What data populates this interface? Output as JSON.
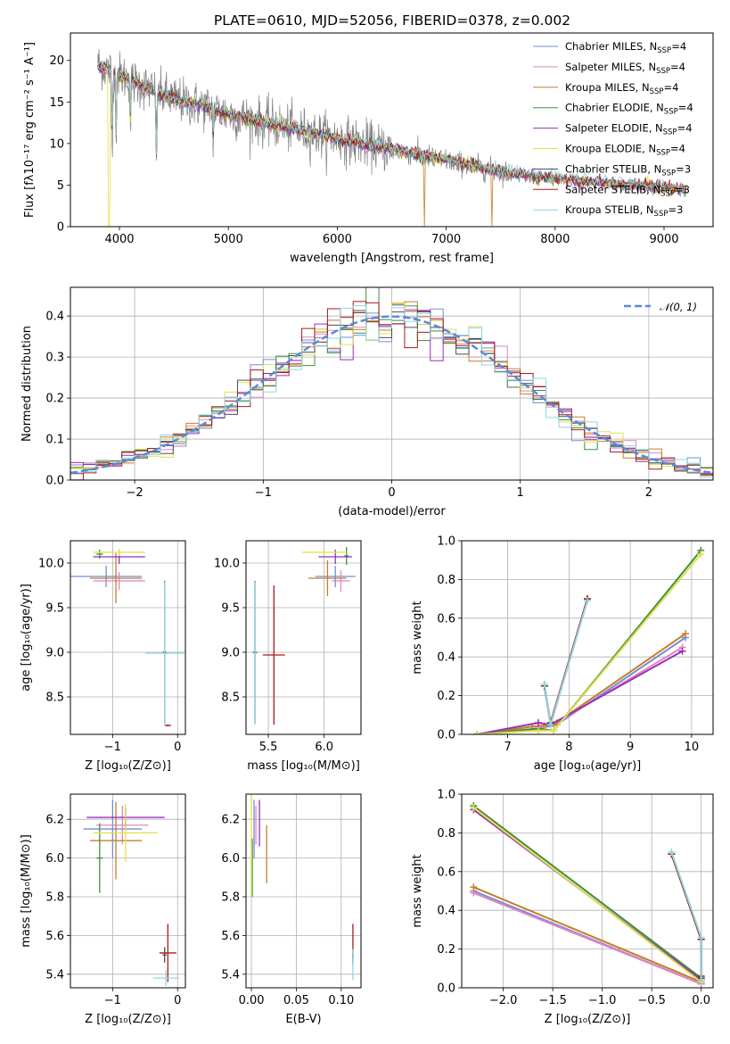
{
  "figure": {
    "title": "PLATE=0610, MJD=52056, FIBERID=0378, z=0.002"
  },
  "colors": {
    "chabrier_miles": "#6f8fd6",
    "salpeter_miles": "#e285c3",
    "kroupa_miles": "#c87d2a",
    "chabrier_elodie": "#3f8f3f",
    "salpeter_elodie": "#9a2fb8",
    "kroupa_elodie": "#e0e04a",
    "chabrier_stelib": "#4d4d4d",
    "salpeter_stelib": "#a81a1a",
    "kroupa_stelib": "#8fd6dd",
    "gaussian": "#5b8ad9",
    "spectrum": "#808080"
  },
  "chart_data": [
    {
      "id": "spectrum",
      "type": "line",
      "xlabel": "wavelength [Angstrom, rest frame]",
      "ylabel": "Flux [fλ10⁻¹⁷ erg cm⁻² s⁻¹ A⁻¹]",
      "xlim": [
        3550,
        9450
      ],
      "ylim": [
        0,
        23.3
      ],
      "xticks": [
        4000,
        5000,
        6000,
        7000,
        8000,
        9000
      ],
      "yticks": [
        0,
        5,
        10,
        15,
        20
      ],
      "grid": false,
      "legend": "top-right",
      "legend_entries": [
        {
          "model": "Chabrier MILES",
          "sub": "SSP",
          "n": "4",
          "color_key": "chabrier_miles"
        },
        {
          "model": "Salpeter MILES",
          "sub": "SSP",
          "n": "4",
          "color_key": "salpeter_miles"
        },
        {
          "model": "Kroupa MILES",
          "sub": "SSP",
          "n": "4",
          "color_key": "kroupa_miles"
        },
        {
          "model": "Chabrier ELODIE",
          "sub": "SSP",
          "n": "4",
          "color_key": "chabrier_elodie"
        },
        {
          "model": "Salpeter ELODIE",
          "sub": "SSP",
          "n": "4",
          "color_key": "salpeter_elodie"
        },
        {
          "model": "Kroupa ELODIE",
          "sub": "SSP",
          "n": "4",
          "color_key": "kroupa_elodie"
        },
        {
          "model": "Chabrier STELIB",
          "sub": "SSP",
          "n": "3",
          "color_key": "chabrier_stelib"
        },
        {
          "model": "Salpeter STELIB",
          "sub": "SSP",
          "n": "3",
          "color_key": "salpeter_stelib"
        },
        {
          "model": "Kroupa STELIB",
          "sub": "SSP",
          "n": "3",
          "color_key": "kroupa_stelib"
        }
      ],
      "continuum": {
        "x": [
          3800,
          4000,
          4200,
          4400,
          4600,
          4800,
          5000,
          5300,
          5600,
          6000,
          6500,
          7000,
          7500,
          8000,
          8500,
          9000,
          9200
        ],
        "y": [
          19.5,
          18.3,
          17.0,
          15.8,
          15.0,
          14.4,
          13.5,
          12.6,
          11.7,
          10.6,
          9.3,
          8.0,
          6.6,
          5.8,
          5.2,
          4.7,
          4.5
        ]
      },
      "absorption_features": [
        {
          "x": 3934,
          "depth": 10.5
        },
        {
          "x": 3969,
          "depth": 7.5
        },
        {
          "x": 4102,
          "depth": 5.0
        },
        {
          "x": 4340,
          "depth": 7.5
        },
        {
          "x": 4861,
          "depth": 3.5
        }
      ],
      "model_dropouts": [
        {
          "x": 3905,
          "series": "kroupa_elodie"
        },
        {
          "x": 6800,
          "series": "kroupa_miles"
        },
        {
          "x": 7420,
          "series": "kroupa_miles"
        }
      ]
    },
    {
      "id": "residuals",
      "type": "histogram",
      "xlabel": "(data-model)/error",
      "ylabel": "Normed distribution",
      "xlim": [
        -2.5,
        2.5
      ],
      "ylim": [
        0,
        0.47
      ],
      "xticks": [
        -2,
        -1,
        0,
        1,
        2
      ],
      "xtick_labels": [
        "−2",
        "−1",
        "0",
        "1",
        "2"
      ],
      "yticks": [
        0.0,
        0.1,
        0.2,
        0.3,
        0.4
      ],
      "grid": true,
      "legend": "top-right",
      "legend_label": "𝒩(0, 1)",
      "bin_width": 0.1,
      "series_keys": [
        "chabrier_miles",
        "salpeter_miles",
        "kroupa_miles",
        "chabrier_elodie",
        "salpeter_elodie",
        "kroupa_elodie",
        "chabrier_stelib",
        "salpeter_stelib",
        "kroupa_stelib"
      ]
    },
    {
      "id": "age_vs_z",
      "type": "errorbar",
      "xlabel": "Z [log₁₀(Z/Z⊙)]",
      "ylabel": "age  [log₁₀(age/yr)]",
      "xlim": [
        -1.65,
        0.12
      ],
      "ylim": [
        8.08,
        10.25
      ],
      "xticks": [
        -1,
        0
      ],
      "xtick_labels": [
        "−1",
        "0"
      ],
      "yticks": [
        8.5,
        9.0,
        9.5,
        10.0
      ],
      "grid": true,
      "points": [
        {
          "series": "chabrier_miles",
          "x": -1.1,
          "xerr": 0.55,
          "y": 9.85,
          "yerr": 0.12
        },
        {
          "series": "salpeter_miles",
          "x": -0.9,
          "xerr": 0.4,
          "y": 9.8,
          "yerr": 0.1
        },
        {
          "series": "kroupa_miles",
          "x": -0.95,
          "xerr": 0.4,
          "y": 9.83,
          "yerr": 0.28
        },
        {
          "series": "chabrier_elodie",
          "x": -1.2,
          "xerr": 0.05,
          "y": 10.1,
          "yerr": 0.05
        },
        {
          "series": "salpeter_elodie",
          "x": -0.9,
          "xerr": 0.4,
          "y": 10.07,
          "yerr": 0.08
        },
        {
          "series": "kroupa_elodie",
          "x": -0.9,
          "xerr": 0.4,
          "y": 10.12,
          "yerr": 0.04
        },
        {
          "series": "chabrier_stelib",
          "x": -0.2,
          "xerr": 0.03,
          "y": 9.0,
          "yerr": 0.8
        },
        {
          "series": "salpeter_stelib",
          "x": -0.15,
          "xerr": 0.05,
          "y": 8.18,
          "yerr": 0.01
        },
        {
          "series": "kroupa_stelib",
          "x": -0.2,
          "xerr": 0.3,
          "y": 8.99,
          "yerr": 0.8
        }
      ]
    },
    {
      "id": "age_vs_mass",
      "type": "errorbar",
      "xlabel": "mass [log₁₀(M/M⊙)]",
      "ylabel": "",
      "xlim": [
        5.3,
        6.33
      ],
      "ylim": [
        8.08,
        10.25
      ],
      "xticks": [
        5.5,
        6.0
      ],
      "xtick_labels": [
        "5.5",
        "6.0"
      ],
      "yticks": [
        8.5,
        9.0,
        9.5,
        10.0
      ],
      "grid": true,
      "points": [
        {
          "series": "chabrier_miles",
          "x": 6.1,
          "xerr": 0.18,
          "y": 9.85,
          "yerr": 0.12
        },
        {
          "series": "salpeter_miles",
          "x": 6.15,
          "xerr": 0.08,
          "y": 9.8,
          "yerr": 0.12
        },
        {
          "series": "kroupa_miles",
          "x": 6.03,
          "xerr": 0.17,
          "y": 9.83,
          "yerr": 0.2
        },
        {
          "series": "chabrier_elodie",
          "x": 6.2,
          "xerr": 0.02,
          "y": 10.08,
          "yerr": 0.1
        },
        {
          "series": "salpeter_elodie",
          "x": 6.1,
          "xerr": 0.15,
          "y": 10.07,
          "yerr": 0.08
        },
        {
          "series": "kroupa_elodie",
          "x": 6.0,
          "xerr": 0.2,
          "y": 10.12,
          "yerr": 0.03
        },
        {
          "series": "chabrier_stelib",
          "x": 5.38,
          "xerr": 0.02,
          "y": 9.0,
          "yerr": 0.8
        },
        {
          "series": "salpeter_stelib",
          "x": 5.55,
          "xerr": 0.1,
          "y": 8.97,
          "yerr": 0.78
        },
        {
          "series": "kroupa_stelib",
          "x": 5.38,
          "xerr": 0.02,
          "y": 8.99,
          "yerr": 0.8
        }
      ]
    },
    {
      "id": "weight_vs_age",
      "type": "line",
      "xlabel": "age  [log₁₀(age/yr)]",
      "ylabel": "mass weight",
      "xlim": [
        6.25,
        10.35
      ],
      "ylim": [
        0,
        1.0
      ],
      "xticks": [
        7,
        8,
        9,
        10
      ],
      "yticks": [
        0.0,
        0.2,
        0.4,
        0.6,
        0.8,
        1.0
      ],
      "grid": true,
      "series": [
        {
          "color_key": "chabrier_miles",
          "x": [
            6.5,
            7.5,
            7.8,
            9.9
          ],
          "y": [
            0.0,
            0.03,
            0.05,
            0.5
          ]
        },
        {
          "color_key": "salpeter_miles",
          "x": [
            6.5,
            7.5,
            7.8,
            9.85
          ],
          "y": [
            0.0,
            0.03,
            0.06,
            0.45
          ]
        },
        {
          "color_key": "kroupa_miles",
          "x": [
            6.5,
            7.4,
            7.75,
            9.9
          ],
          "y": [
            0.0,
            0.04,
            0.05,
            0.52
          ]
        },
        {
          "color_key": "chabrier_elodie",
          "x": [
            6.5,
            7.5,
            7.75,
            10.15
          ],
          "y": [
            0.0,
            0.03,
            0.02,
            0.95
          ]
        },
        {
          "color_key": "salpeter_elodie",
          "x": [
            6.5,
            7.5,
            7.7,
            9.85
          ],
          "y": [
            0.0,
            0.06,
            0.05,
            0.43
          ]
        },
        {
          "color_key": "kroupa_elodie",
          "x": [
            6.5,
            7.5,
            7.75,
            10.15
          ],
          "y": [
            0.0,
            0.02,
            0.02,
            0.93
          ]
        },
        {
          "color_key": "chabrier_stelib",
          "x": [
            7.6,
            7.7,
            8.3
          ],
          "y": [
            0.25,
            0.05,
            0.7
          ]
        },
        {
          "color_key": "salpeter_stelib",
          "x": [
            7.6,
            7.7,
            8.3
          ],
          "y": [
            0.25,
            0.06,
            0.7
          ]
        },
        {
          "color_key": "kroupa_stelib",
          "x": [
            7.6,
            7.7,
            8.3
          ],
          "y": [
            0.26,
            0.05,
            0.69
          ]
        }
      ]
    },
    {
      "id": "mass_vs_z",
      "type": "errorbar",
      "xlabel": "Z [log₁₀(Z/Z⊙)]",
      "ylabel": "mass [log₁₀(M/M⊙)]",
      "xlim": [
        -1.65,
        0.12
      ],
      "ylim": [
        5.33,
        6.33
      ],
      "xticks": [
        -1,
        0
      ],
      "xtick_labels": [
        "−1",
        "0"
      ],
      "yticks": [
        5.4,
        5.6,
        5.8,
        6.0,
        6.2
      ],
      "grid": true,
      "points": [
        {
          "series": "chabrier_miles",
          "x": -1.0,
          "xerr": 0.45,
          "y": 6.15,
          "yerr": 0.15
        },
        {
          "series": "salpeter_miles",
          "x": -0.85,
          "xerr": 0.4,
          "y": 6.17,
          "yerr": 0.1
        },
        {
          "series": "kroupa_miles",
          "x": -0.95,
          "xerr": 0.4,
          "y": 6.09,
          "yerr": 0.2
        },
        {
          "series": "chabrier_elodie",
          "x": -1.2,
          "xerr": 0.05,
          "y": 6.0,
          "yerr": 0.18
        },
        {
          "series": "salpeter_elodie",
          "x": -0.8,
          "xerr": 0.6,
          "y": 6.21,
          "yerr": 0.05
        },
        {
          "series": "kroupa_elodie",
          "x": -0.8,
          "xerr": 0.5,
          "y": 6.13,
          "yerr": 0.15
        },
        {
          "series": "chabrier_stelib",
          "x": -0.2,
          "xerr": 0.03,
          "y": 5.5,
          "yerr": 0.04
        },
        {
          "series": "salpeter_stelib",
          "x": -0.15,
          "xerr": 0.13,
          "y": 5.51,
          "yerr": 0.15
        },
        {
          "series": "kroupa_stelib",
          "x": -0.18,
          "xerr": 0.2,
          "y": 5.38,
          "yerr": 0.04
        }
      ]
    },
    {
      "id": "mass_vs_ebv",
      "type": "errorbar",
      "xlabel": "E(B-V)",
      "ylabel": "",
      "xlim": [
        -0.006,
        0.122
      ],
      "ylim": [
        5.33,
        6.33
      ],
      "xticks": [
        0.0,
        0.05,
        0.1
      ],
      "xtick_labels": [
        "0.00",
        "0.05",
        "0.10"
      ],
      "yticks": [
        5.4,
        5.6,
        5.8,
        6.0,
        6.2
      ],
      "grid": true,
      "points": [
        {
          "series": "chabrier_miles",
          "x": 0.003,
          "y": 6.15,
          "yerr": 0.15
        },
        {
          "series": "salpeter_miles",
          "x": 0.005,
          "y": 6.17,
          "yerr": 0.1
        },
        {
          "series": "kroupa_miles",
          "x": 0.017,
          "y": 6.02,
          "yerr": 0.15
        },
        {
          "series": "chabrier_elodie",
          "x": 0.001,
          "y": 5.95,
          "yerr": 0.15
        },
        {
          "series": "salpeter_elodie",
          "x": 0.009,
          "y": 6.18,
          "yerr": 0.12
        },
        {
          "series": "kroupa_elodie",
          "x": 0.0,
          "y": 6.1,
          "yerr": 0.3
        },
        {
          "series": "chabrier_stelib",
          "x": 0.113,
          "y": 5.48,
          "yerr": 0.03
        },
        {
          "series": "salpeter_stelib",
          "x": 0.113,
          "y": 5.57,
          "yerr": 0.09
        },
        {
          "series": "kroupa_stelib",
          "x": 0.113,
          "y": 5.45,
          "yerr": 0.08
        }
      ]
    },
    {
      "id": "weight_vs_z",
      "type": "line",
      "xlabel": "Z [log₁₀(Z/Z⊙)]",
      "ylabel": "mass weight",
      "xlim": [
        -2.42,
        0.12
      ],
      "ylim": [
        0,
        1.0
      ],
      "xticks": [
        -2.0,
        -1.5,
        -1.0,
        -0.5,
        0.0
      ],
      "xtick_labels": [
        "−2.0",
        "−1.5",
        "−1.0",
        "−0.5",
        "0.0"
      ],
      "yticks": [
        0.0,
        0.2,
        0.4,
        0.6,
        0.8,
        1.0
      ],
      "grid": true,
      "series": [
        {
          "color_key": "chabrier_miles",
          "x": [
            -2.3,
            0.0
          ],
          "y": [
            0.5,
            0.02
          ]
        },
        {
          "color_key": "salpeter_miles",
          "x": [
            -2.3,
            0.0
          ],
          "y": [
            0.49,
            0.02
          ]
        },
        {
          "color_key": "kroupa_miles",
          "x": [
            -2.3,
            0.0
          ],
          "y": [
            0.52,
            0.03
          ]
        },
        {
          "color_key": "chabrier_elodie",
          "x": [
            -2.3,
            0.0
          ],
          "y": [
            0.94,
            0.05
          ]
        },
        {
          "color_key": "salpeter_elodie",
          "x": [
            -2.3,
            0.0
          ],
          "y": [
            0.92,
            0.04
          ]
        },
        {
          "color_key": "kroupa_elodie",
          "x": [
            -2.3,
            0.0
          ],
          "y": [
            0.93,
            0.03
          ]
        },
        {
          "color_key": "chabrier_stelib",
          "x": [
            -0.3,
            0.0,
            0.0
          ],
          "y": [
            0.69,
            0.25,
            0.05
          ]
        },
        {
          "color_key": "salpeter_stelib",
          "x": [
            -0.3,
            0.0,
            0.0
          ],
          "y": [
            0.69,
            0.25,
            0.06
          ]
        },
        {
          "color_key": "kroupa_stelib",
          "x": [
            -0.3,
            0.0,
            0.0
          ],
          "y": [
            0.7,
            0.26,
            0.04
          ]
        }
      ]
    }
  ]
}
